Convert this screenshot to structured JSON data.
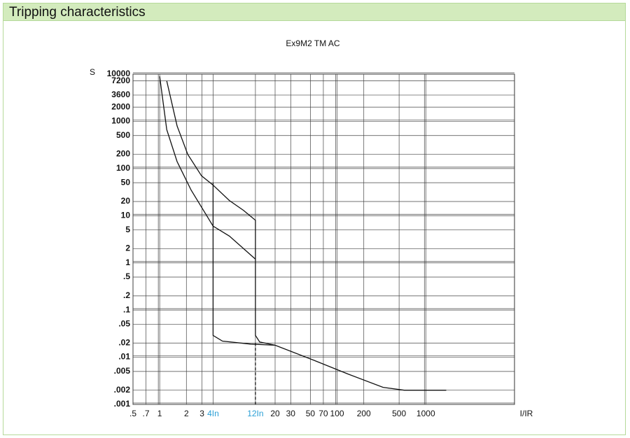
{
  "header": {
    "title": "Tripping characteristics"
  },
  "chart_data": {
    "type": "line",
    "title": "Ex9M2 TM AC",
    "y_label": "S",
    "x_label": "I/IR",
    "log_x": true,
    "log_y": true,
    "grid": true,
    "color": "#111111",
    "tick_highlight_color": "#2a9fd6",
    "xlim": [
      0.5,
      10000
    ],
    "ylim": [
      0.001,
      10000
    ],
    "xticks": [
      {
        "value": 0.5,
        "label": ".5"
      },
      {
        "value": 0.7,
        "label": ".7"
      },
      1,
      2,
      3,
      {
        "value": 4,
        "label": "4In",
        "highlight": true
      },
      {
        "value": 12,
        "label": "12In",
        "highlight": true
      },
      20,
      30,
      50,
      70,
      100,
      200,
      500,
      1000
    ],
    "yticks": [
      10000,
      7200,
      3600,
      2000,
      1000,
      500,
      200,
      100,
      50,
      20,
      10,
      5,
      2,
      1,
      {
        "value": 0.5,
        "label": ".5"
      },
      {
        "value": 0.2,
        "label": ".2"
      },
      {
        "value": 0.1,
        "label": ".1"
      },
      {
        "value": 0.05,
        "label": ".05"
      },
      {
        "value": 0.02,
        "label": ".02"
      },
      {
        "value": 0.01,
        "label": ".01"
      },
      {
        "value": 0.005,
        "label": ".005"
      },
      {
        "value": 0.002,
        "label": ".002"
      },
      {
        "value": 0.001,
        "label": ".001"
      }
    ],
    "series": [
      {
        "x": [
          1.2,
          1.57,
          2.07,
          2.96,
          3.97,
          6.1,
          8.8,
          12,
          12,
          13.4,
          20,
          54,
          133,
          330,
          570,
          1700
        ],
        "values": [
          7200,
          800,
          200,
          70,
          45,
          21,
          13,
          8,
          0.029,
          0.021,
          0.018,
          0.0087,
          0.0044,
          0.0023,
          0.002,
          0.002
        ]
      },
      {
        "x": [
          1,
          1.2,
          1.57,
          2.26,
          4,
          6.1,
          12
        ],
        "values": [
          9000,
          670,
          140,
          35,
          6,
          3.7,
          1.2
        ]
      },
      {
        "x": [
          4,
          4,
          5.1,
          10.6,
          20
        ],
        "values": [
          50,
          0.029,
          0.022,
          0.019,
          0.018
        ]
      },
      {
        "x": [
          12,
          12
        ],
        "values": [
          0.02,
          0.001
        ],
        "dashed": true
      }
    ]
  }
}
